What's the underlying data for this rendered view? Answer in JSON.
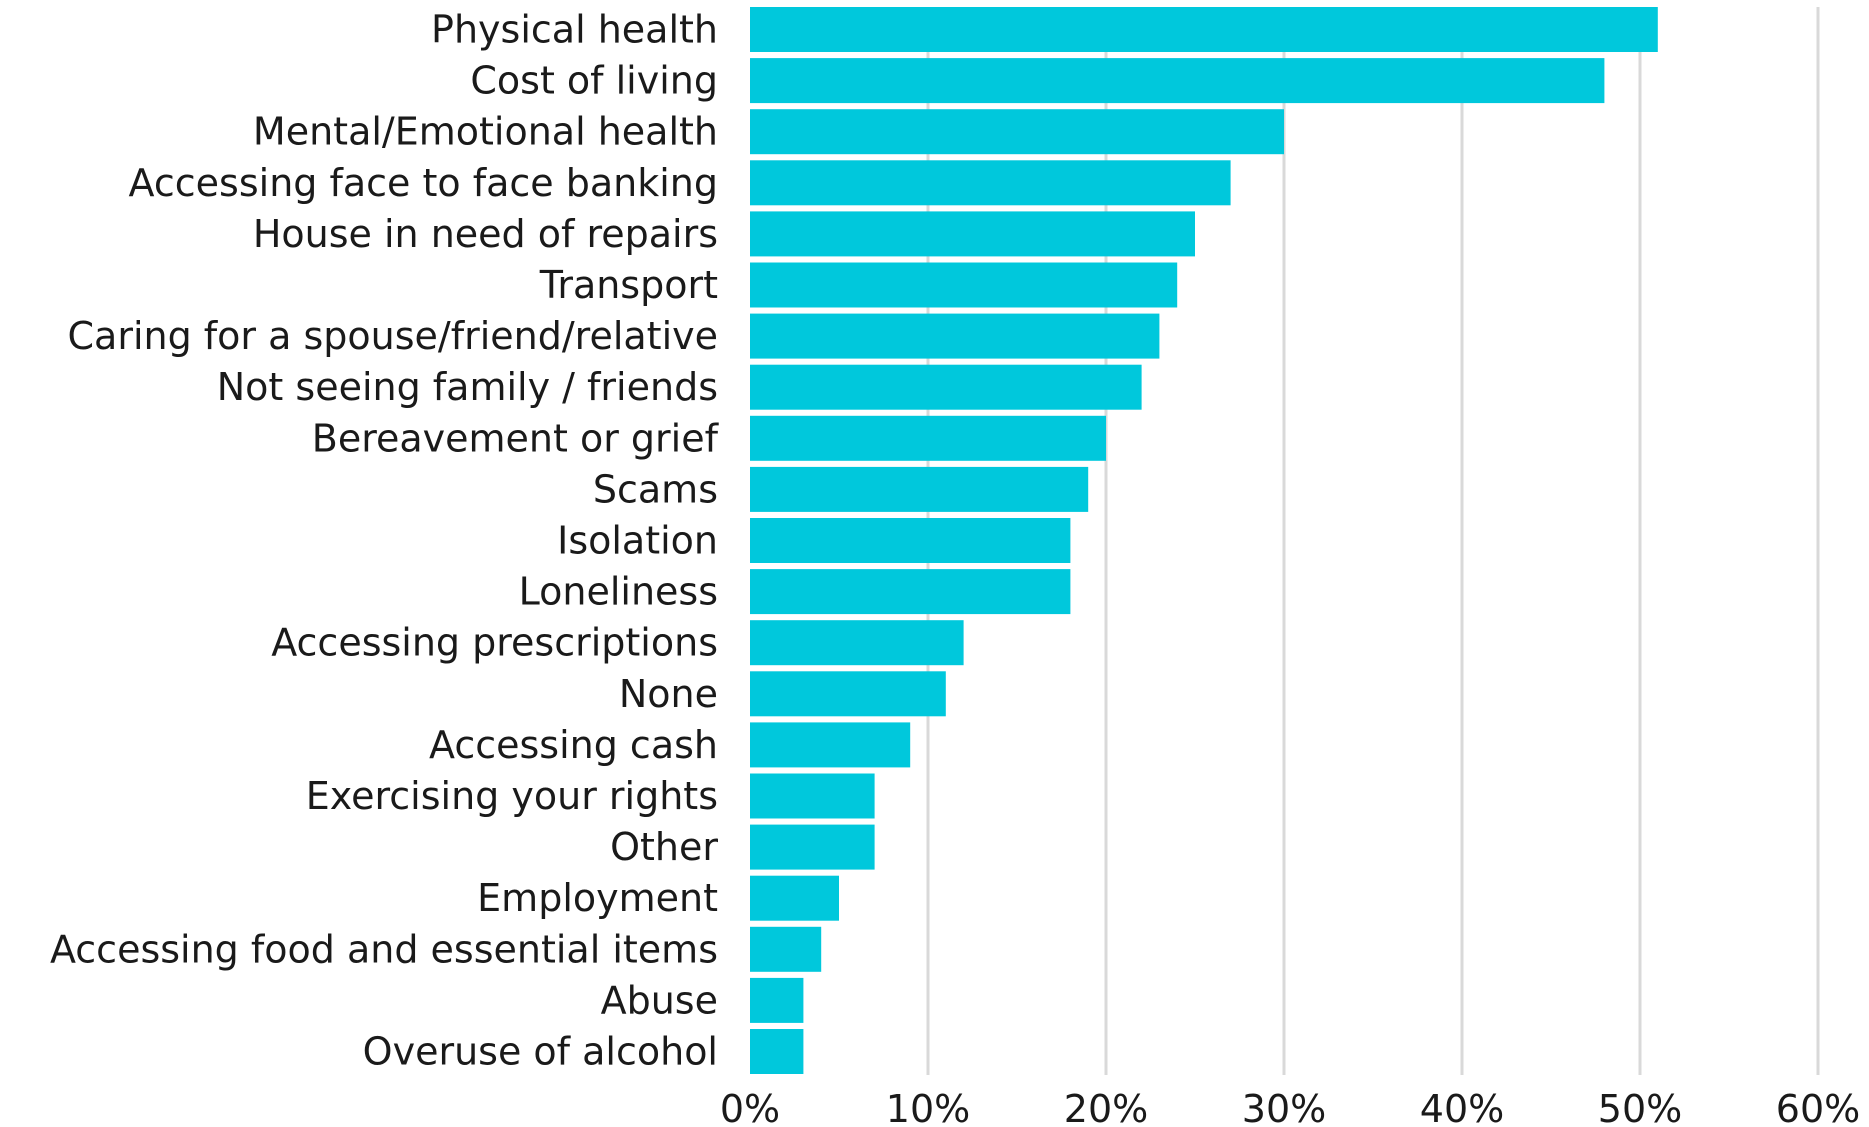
{
  "chart_data": {
    "type": "bar",
    "orientation": "horizontal",
    "title": "",
    "xlabel": "",
    "ylabel": "",
    "xlim": [
      0,
      60
    ],
    "x_ticks": [
      0,
      10,
      20,
      30,
      40,
      50,
      60
    ],
    "x_tick_labels": [
      "0%",
      "10%",
      "20%",
      "30%",
      "40%",
      "50%",
      "60%"
    ],
    "grid": "vertical",
    "bar_color": "#00C8DC",
    "gridline_color": "#D9D9D9",
    "categories": [
      "Physical health",
      "Cost of living",
      "Mental/Emotional health",
      "Accessing face to face banking",
      "House in need of repairs",
      "Transport",
      "Caring for a spouse/friend/relative",
      "Not seeing family / friends",
      "Bereavement or grief",
      "Scams",
      "Isolation",
      "Loneliness",
      "Accessing prescriptions",
      "None",
      "Accessing cash",
      "Exercising your rights",
      "Other",
      "Employment",
      "Accessing food and essential items",
      "Abuse",
      "Overuse of alcohol"
    ],
    "values": [
      51,
      48,
      30,
      27,
      25,
      24,
      23,
      22,
      20,
      19,
      18,
      18,
      12,
      11,
      9,
      7,
      7,
      5,
      4,
      3,
      3
    ]
  }
}
